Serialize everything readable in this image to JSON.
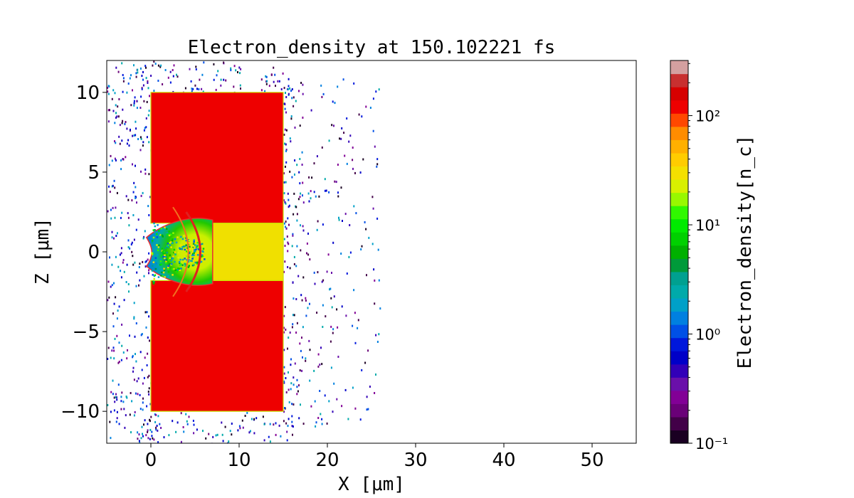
{
  "chart_data": {
    "type": "heatmap",
    "title": "Electron_density at 150.102221 fs",
    "xlabel": "X [μm]",
    "ylabel": "Z [μm]",
    "xlim": [
      -5,
      55
    ],
    "ylim": [
      -12,
      12
    ],
    "x_ticks": [
      0,
      10,
      20,
      30,
      40,
      50
    ],
    "x_tick_labels": [
      "0",
      "10",
      "20",
      "30",
      "40",
      "50"
    ],
    "y_ticks": [
      10,
      5,
      0,
      -5,
      -10
    ],
    "y_tick_labels": [
      "10",
      "5",
      "0",
      "−5",
      "−10"
    ],
    "colorbar": {
      "label": "Electron_density[n_c]",
      "scale": "log",
      "range": [
        0.1,
        320
      ],
      "ticks": [
        0.1,
        1,
        10,
        100
      ],
      "tick_labels": [
        "10⁻¹",
        "10⁰",
        "10¹",
        "10²"
      ],
      "colors": [
        "#1a0022",
        "#420048",
        "#6a0078",
        "#820096",
        "#6a10aa",
        "#3200b8",
        "#0000c8",
        "#0018dc",
        "#0050e6",
        "#0080e0",
        "#00a0c8",
        "#00aaaa",
        "#00a090",
        "#009a3a",
        "#00b000",
        "#00d000",
        "#00ea00",
        "#30f800",
        "#98f800",
        "#d8f000",
        "#f4e000",
        "#ffcc00",
        "#ffb000",
        "#ff8c00",
        "#ff4800",
        "#ee0000",
        "#d60000",
        "#c83030",
        "#d4a0a0"
      ]
    },
    "regions": [
      {
        "shape": "rect",
        "x": [
          0,
          15
        ],
        "z": [
          1.8,
          10
        ],
        "density": 200,
        "color": "#ee0000"
      },
      {
        "shape": "rect",
        "x": [
          0,
          15
        ],
        "z": [
          -10,
          -1.8
        ],
        "density": 200,
        "color": "#ee0000"
      },
      {
        "shape": "rect",
        "x": [
          6.5,
          15
        ],
        "z": [
          -1.8,
          1.8
        ],
        "density": 40,
        "color": "#f0e000"
      },
      {
        "shape": "expanded-plasma",
        "x": [
          -0.5,
          7
        ],
        "z": [
          -2.2,
          2.2
        ],
        "density_range": [
          1,
          40
        ]
      }
    ],
    "sparse_electrons": {
      "x": [
        -5,
        26
      ],
      "z": [
        -12,
        12
      ],
      "density_range": [
        0.1,
        1
      ]
    }
  }
}
